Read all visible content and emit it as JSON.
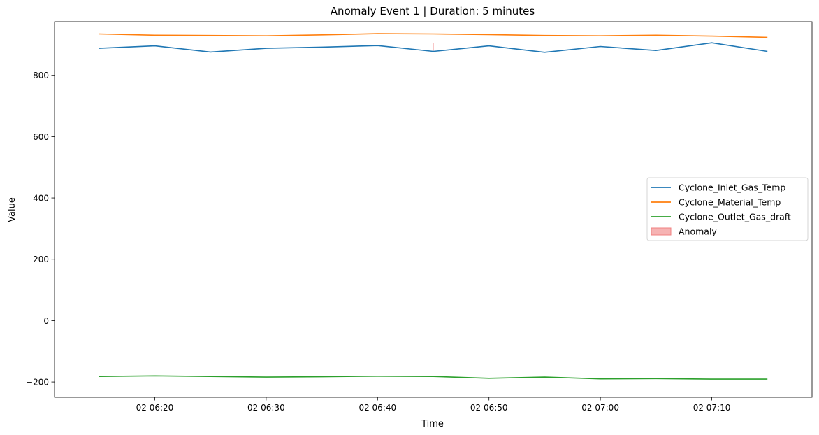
{
  "chart_data": {
    "type": "line",
    "title": "Anomaly Event 1 | Duration: 5 minutes",
    "xlabel": "Time",
    "ylabel": "Value",
    "x": [
      "06:15",
      "06:20",
      "06:25",
      "06:30",
      "06:35",
      "06:40",
      "06:45",
      "06:50",
      "06:55",
      "07:00",
      "07:05",
      "07:10",
      "07:15"
    ],
    "x_ticks": [
      {
        "t": "06:20",
        "label": "02 06:20"
      },
      {
        "t": "06:30",
        "label": "02 06:30"
      },
      {
        "t": "06:40",
        "label": "02 06:40"
      },
      {
        "t": "06:50",
        "label": "02 06:50"
      },
      {
        "t": "07:00",
        "label": "02 07:00"
      },
      {
        "t": "07:10",
        "label": "02 07:10"
      }
    ],
    "xlim": [
      "06:11",
      "07:19"
    ],
    "ylim": [
      -250,
      975
    ],
    "y_ticks": [
      {
        "v": -200,
        "label": "−200"
      },
      {
        "v": 0,
        "label": "0"
      },
      {
        "v": 200,
        "label": "200"
      },
      {
        "v": 400,
        "label": "400"
      },
      {
        "v": 600,
        "label": "600"
      },
      {
        "v": 800,
        "label": "800"
      }
    ],
    "grid": false,
    "legend_position": "center-right",
    "series": [
      {
        "name": "Cyclone_Inlet_Gas_Temp",
        "color": "#1f77b4",
        "values": [
          888,
          896,
          876,
          888,
          892,
          897,
          878,
          896,
          875,
          894,
          881,
          906,
          878
        ]
      },
      {
        "name": "Cyclone_Material_Temp",
        "color": "#ff7f0e",
        "values": [
          935,
          931,
          930,
          929,
          932,
          936,
          935,
          933,
          930,
          929,
          931,
          928,
          924
        ]
      },
      {
        "name": "Cyclone_Outlet_Gas_draft",
        "color": "#2ca02c",
        "values": [
          -182,
          -180,
          -182,
          -184,
          -183,
          -181,
          -182,
          -188,
          -184,
          -190,
          -189,
          -191,
          -191
        ]
      }
    ],
    "anomaly": {
      "name": "Anomaly",
      "color": "#f08080",
      "start": "06:45",
      "end": "06:45",
      "y_range": [
        880,
        905
      ]
    }
  }
}
